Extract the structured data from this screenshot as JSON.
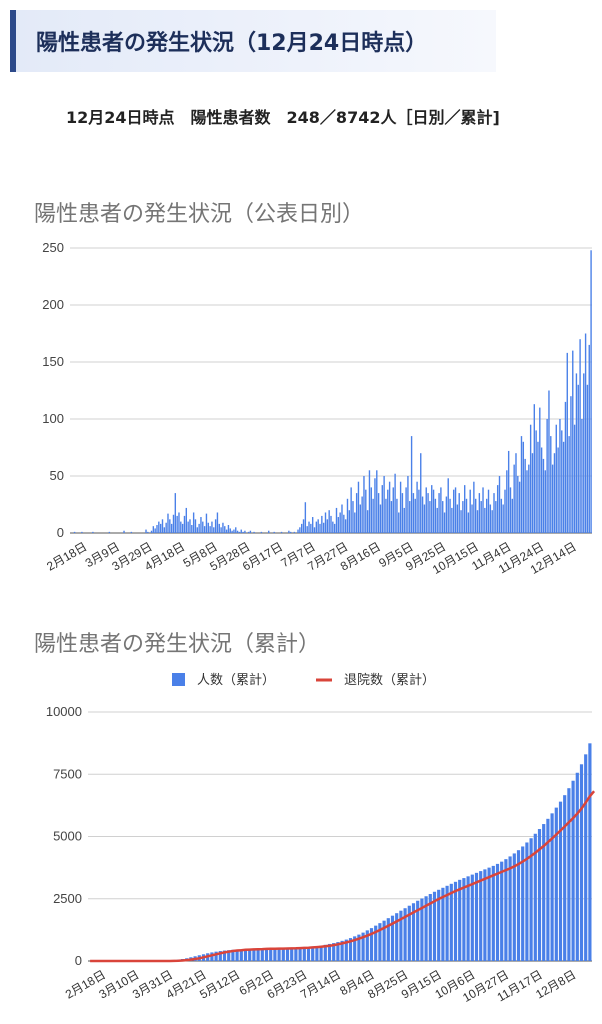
{
  "header": {
    "title": "陽性患者の発生状況（12月24日時点）"
  },
  "summary": {
    "text": "12月24日時点　陽性患者数　248／8742人［日別／累計]"
  },
  "chart_data": [
    {
      "type": "bar",
      "title": "陽性患者の発生状況（公表日別）",
      "xlabel": "",
      "ylabel": "",
      "ylim": [
        0,
        250
      ],
      "yticks": [
        0,
        50,
        100,
        150,
        200,
        250
      ],
      "xticklabels": [
        "2月18日",
        "3月9日",
        "3月29日",
        "4月18日",
        "5月8日",
        "5月28日",
        "6月17日",
        "7月7日",
        "7月27日",
        "8月16日",
        "9月5日",
        "9月25日",
        "10月15日",
        "11月4日",
        "11月24日",
        "12月14日"
      ],
      "series": [
        {
          "name": "",
          "color": "#4a80e8",
          "values": [
            0,
            0,
            1,
            0,
            0,
            0,
            1,
            0,
            0,
            0,
            0,
            0,
            1,
            0,
            0,
            0,
            0,
            0,
            0,
            0,
            0,
            1,
            0,
            0,
            0,
            0,
            0,
            0,
            0,
            2,
            0,
            0,
            0,
            1,
            0,
            0,
            0,
            0,
            0,
            0,
            0,
            3,
            1,
            0,
            2,
            6,
            4,
            7,
            10,
            8,
            12,
            5,
            9,
            17,
            12,
            8,
            16,
            35,
            15,
            18,
            10,
            8,
            15,
            22,
            10,
            12,
            7,
            18,
            12,
            5,
            8,
            14,
            10,
            6,
            17,
            9,
            6,
            10,
            5,
            12,
            18,
            8,
            5,
            9,
            6,
            3,
            7,
            4,
            2,
            3,
            5,
            2,
            1,
            3,
            1,
            2,
            0,
            1,
            2,
            0,
            1,
            0,
            0,
            0,
            1,
            0,
            0,
            0,
            2,
            0,
            0,
            1,
            0,
            0,
            0,
            1,
            0,
            0,
            0,
            2,
            1,
            0,
            1,
            0,
            3,
            5,
            8,
            12,
            27,
            6,
            10,
            8,
            14,
            5,
            10,
            12,
            8,
            15,
            9,
            18,
            12,
            20,
            15,
            10,
            8,
            22,
            14,
            18,
            25,
            16,
            12,
            30,
            20,
            40,
            28,
            18,
            35,
            45,
            25,
            32,
            50,
            38,
            20,
            55,
            40,
            30,
            48,
            55,
            35,
            25,
            42,
            50,
            30,
            38,
            45,
            28,
            40,
            52,
            30,
            18,
            45,
            35,
            22,
            40,
            50,
            28,
            85,
            35,
            30,
            45,
            38,
            70,
            32,
            25,
            40,
            35,
            28,
            42,
            38,
            30,
            22,
            35,
            40,
            28,
            18,
            32,
            48,
            30,
            22,
            38,
            40,
            25,
            35,
            20,
            28,
            42,
            30,
            18,
            38,
            25,
            45,
            30,
            20,
            35,
            28,
            40,
            22,
            30,
            38,
            25,
            20,
            35,
            28,
            42,
            50,
            30,
            25,
            38,
            55,
            72,
            40,
            30,
            60,
            70,
            50,
            45,
            85,
            80,
            65,
            55,
            60,
            95,
            70,
            113,
            90,
            80,
            110,
            75,
            65,
            55,
            100,
            125,
            85,
            60,
            70,
            95,
            75,
            100,
            90,
            80,
            115,
            158,
            85,
            120,
            160,
            95,
            140,
            130,
            170,
            100,
            140,
            175,
            130,
            165,
            248
          ]
        }
      ]
    },
    {
      "type": "bar",
      "title": "陽性患者の発生状況（累計）",
      "xlabel": "",
      "ylabel": "",
      "ylim": [
        0,
        10000
      ],
      "yticks": [
        0,
        2500,
        5000,
        7500,
        10000
      ],
      "xticklabels": [
        "2月18日",
        "3月10日",
        "3月31日",
        "4月21日",
        "5月12日",
        "6月2日",
        "6月23日",
        "7月14日",
        "8月4日",
        "8月25日",
        "9月15日",
        "10月6日",
        "10月27日",
        "11月17日",
        "12月8日"
      ],
      "legend": {
        "position": "top",
        "entries": [
          "人数（累計）",
          "退院数（累計）"
        ]
      },
      "series": [
        {
          "name": "人数（累計）",
          "type": "bar",
          "color": "#4a80e8",
          "values": [
            0,
            0,
            0,
            0,
            0,
            0,
            0,
            0,
            0,
            0,
            0,
            0,
            0,
            0,
            5,
            10,
            15,
            20,
            25,
            30,
            40,
            55,
            80,
            110,
            150,
            190,
            230,
            270,
            310,
            345,
            375,
            400,
            420,
            435,
            450,
            460,
            470,
            478,
            485,
            490,
            494,
            497,
            500,
            502,
            505,
            508,
            512,
            515,
            520,
            525,
            535,
            545,
            560,
            575,
            595,
            620,
            650,
            685,
            720,
            760,
            810,
            860,
            920,
            990,
            1060,
            1140,
            1230,
            1320,
            1420,
            1520,
            1620,
            1720,
            1820,
            1920,
            2020,
            2120,
            2220,
            2320,
            2420,
            2510,
            2600,
            2690,
            2780,
            2860,
            2940,
            3020,
            3100,
            3180,
            3260,
            3330,
            3400,
            3470,
            3540,
            3610,
            3680,
            3750,
            3820,
            3900,
            3990,
            4090,
            4200,
            4320,
            4450,
            4600,
            4760,
            4930,
            5110,
            5300,
            5500,
            5710,
            5930,
            6160,
            6400,
            6660,
            6940,
            7240,
            7560,
            7900,
            8300,
            8742
          ]
        },
        {
          "name": "退院数（累計）",
          "type": "line",
          "color": "#d9443a",
          "values": [
            0,
            0,
            0,
            0,
            0,
            0,
            0,
            0,
            0,
            0,
            0,
            0,
            0,
            0,
            0,
            0,
            0,
            0,
            0,
            0,
            5,
            10,
            20,
            35,
            55,
            80,
            110,
            150,
            190,
            230,
            270,
            310,
            345,
            375,
            400,
            420,
            435,
            448,
            458,
            466,
            473,
            479,
            484,
            488,
            492,
            496,
            500,
            504,
            508,
            512,
            518,
            526,
            535,
            546,
            558,
            572,
            590,
            612,
            640,
            670,
            705,
            745,
            790,
            840,
            895,
            955,
            1020,
            1090,
            1165,
            1245,
            1330,
            1415,
            1500,
            1590,
            1680,
            1770,
            1860,
            1950,
            2040,
            2130,
            2220,
            2310,
            2400,
            2490,
            2570,
            2650,
            2730,
            2810,
            2880,
            2950,
            3020,
            3090,
            3160,
            3230,
            3300,
            3370,
            3440,
            3510,
            3580,
            3650,
            3720,
            3800,
            3890,
            3990,
            4100,
            4220,
            4350,
            4480,
            4620,
            4770,
            4920,
            5080,
            5240,
            5400,
            5570,
            5740,
            5920,
            6120,
            6360,
            6620,
            6820
          ]
        }
      ]
    }
  ]
}
